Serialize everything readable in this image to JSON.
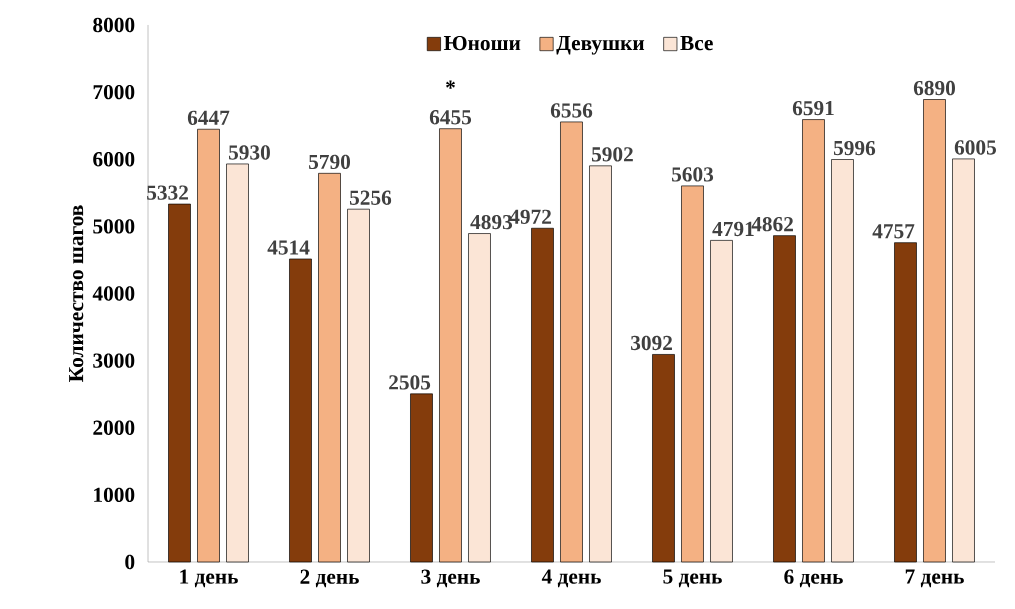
{
  "chart_data": {
    "type": "bar",
    "ylabel": "Количество шагов",
    "categories": [
      "1 день",
      "2 день",
      "3 день",
      "4 день",
      "5 день",
      "6 день",
      "7 день"
    ],
    "series": [
      {
        "name": "Юноши",
        "color": "#843c0c",
        "values": [
          5332,
          4514,
          2505,
          4972,
          3092,
          4862,
          4757
        ]
      },
      {
        "name": "Девушки",
        "color": "#f4b183",
        "values": [
          6447,
          5790,
          6455,
          6556,
          5603,
          6591,
          6890
        ]
      },
      {
        "name": "Все",
        "color": "#fbe5d6",
        "values": [
          5930,
          5256,
          4893,
          5902,
          4791,
          5996,
          6005
        ]
      }
    ],
    "ylim": [
      0,
      8000
    ],
    "yticks": [
      0,
      1000,
      2000,
      3000,
      4000,
      5000,
      6000,
      7000,
      8000
    ],
    "data_labels": true,
    "legend": "top",
    "grid": false,
    "annotations": [
      {
        "text": "*",
        "x": "3 день",
        "y": 6455
      }
    ]
  }
}
